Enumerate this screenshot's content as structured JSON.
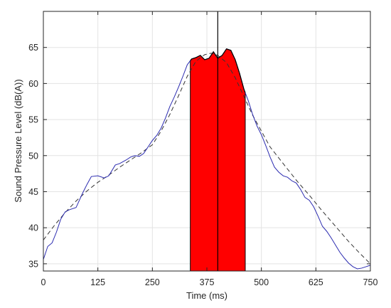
{
  "chart_data": {
    "type": "line",
    "title": "",
    "xlabel": "Time (ms)",
    "ylabel": "Sound Pressure Level (dB(A))",
    "xlim": [
      0,
      750
    ],
    "ylim": [
      34,
      70
    ],
    "xticks": [
      0,
      125,
      250,
      375,
      500,
      625,
      750
    ],
    "xtick_labels": [
      "0",
      "125",
      "250",
      "375",
      "500",
      "625",
      "750"
    ],
    "yticks": [
      35,
      40,
      45,
      50,
      55,
      60,
      65
    ],
    "ytick_labels": [
      "35",
      "40",
      "45",
      "50",
      "55",
      "60",
      "65"
    ],
    "grid": true,
    "legend": "none",
    "colors": {
      "measured": "#2b2bb0",
      "fit": "#333333",
      "fill": "#ff0000",
      "marker": "#000000",
      "grid": "#e3e3e3",
      "axes": "#262626"
    },
    "series": [
      {
        "style": "solid-blue",
        "x": [
          0,
          10,
          20,
          30,
          40,
          50,
          60,
          75,
          90,
          100,
          110,
          125,
          140,
          150,
          165,
          175,
          190,
          200,
          210,
          220,
          230,
          240,
          250,
          260,
          270,
          280,
          290,
          300,
          310,
          320,
          330,
          340,
          350,
          360,
          370,
          380,
          390,
          400,
          410,
          420,
          430,
          440,
          450,
          460,
          470,
          480,
          490,
          500,
          510,
          520,
          530,
          540,
          550,
          560,
          570,
          580,
          590,
          600,
          610,
          620,
          630,
          640,
          650,
          660,
          670,
          680,
          690,
          700,
          710,
          720,
          730,
          740,
          750
        ],
        "y": [
          35.6,
          37.4,
          37.9,
          39.4,
          41.2,
          42.2,
          42.5,
          42.8,
          44.8,
          46.0,
          47.1,
          47.2,
          46.9,
          47.2,
          48.7,
          48.9,
          49.4,
          49.8,
          50.0,
          49.9,
          50.3,
          51.2,
          52.1,
          52.8,
          53.8,
          55.2,
          56.8,
          58.1,
          59.5,
          61.0,
          62.6,
          63.4,
          63.6,
          63.9,
          63.3,
          63.5,
          64.4,
          63.5,
          63.9,
          64.8,
          64.6,
          63.3,
          61.4,
          59.2,
          57.6,
          55.7,
          54.1,
          52.9,
          51.4,
          49.8,
          48.4,
          47.7,
          47.2,
          47.0,
          46.5,
          46.2,
          45.3,
          44.2,
          43.8,
          42.9,
          41.6,
          40.2,
          39.5,
          38.6,
          37.6,
          36.6,
          35.8,
          35.1,
          34.6,
          34.3,
          34.4,
          34.6,
          34.8
        ]
      },
      {
        "style": "dashed-black",
        "x": [
          0,
          25,
          50,
          75,
          100,
          125,
          150,
          175,
          200,
          225,
          250,
          270,
          290,
          310,
          330,
          350,
          370,
          385,
          400,
          420,
          440,
          460,
          480,
          500,
          520,
          550,
          580,
          610,
          640,
          670,
          700,
          725,
          750
        ],
        "y": [
          38.3,
          40.3,
          42.1,
          43.7,
          45.1,
          46.3,
          47.3,
          48.4,
          49.4,
          50.4,
          51.5,
          53.4,
          55.7,
          58.3,
          61.0,
          63.1,
          64.0,
          64.2,
          63.9,
          62.9,
          60.8,
          58.2,
          55.6,
          53.4,
          51.2,
          48.9,
          46.6,
          44.5,
          42.3,
          40.2,
          38.1,
          36.5,
          35.0
        ]
      }
    ],
    "shaded_region": {
      "x_start": 337,
      "x_end": 463,
      "marker_x": 400,
      "color": "red"
    }
  }
}
